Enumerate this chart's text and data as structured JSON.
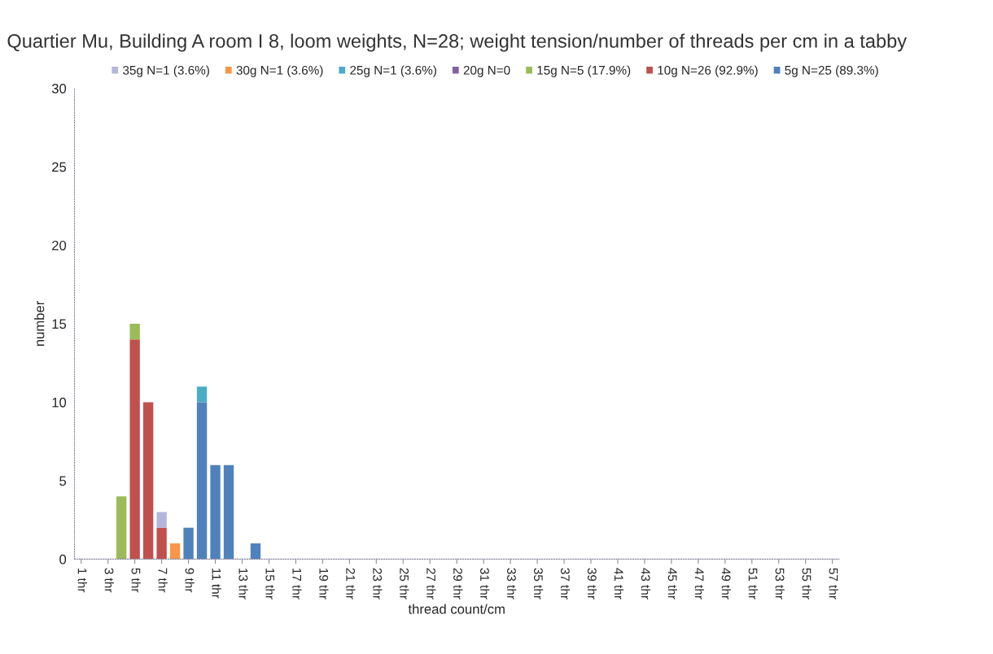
{
  "chart_data": {
    "type": "bar",
    "stacked": true,
    "title": "Quartier Mu, Building A room I 8, loom weights, N=28; weight tension/number of threads per cm in a tabby",
    "xlabel": "thread count/cm",
    "ylabel": "number",
    "categories": [
      "1 thr",
      null,
      "3 thr",
      null,
      "5 thr",
      null,
      "7 thr",
      null,
      "9 thr",
      null,
      "11 thr",
      null,
      "13 thr",
      null,
      "15 thr",
      null,
      "17 thr",
      null,
      "19 thr",
      null,
      "21 thr",
      null,
      "23 thr",
      null,
      "25 thr",
      null,
      "27 thr",
      null,
      "29 thr",
      null,
      "31 thr",
      null,
      "33 thr",
      null,
      "35 thr",
      null,
      "37 thr",
      null,
      "39 thr",
      null,
      "41 thr",
      null,
      "43 thr",
      null,
      "45 thr",
      null,
      "47 thr",
      null,
      "49 thr",
      null,
      "51 thr",
      null,
      "53 thr",
      null,
      "55 thr",
      null,
      "57 thr"
    ],
    "series": [
      {
        "name": "5g N=25 (89.3%)",
        "color": "#4f81bd",
        "values": [
          null,
          null,
          null,
          null,
          null,
          null,
          null,
          null,
          2,
          10,
          6,
          6,
          null,
          1,
          null,
          null,
          null,
          null,
          null,
          null,
          null,
          null,
          null,
          null,
          null,
          null,
          null,
          null,
          null,
          null,
          null,
          null,
          null,
          null,
          null,
          null,
          null,
          null,
          null,
          null,
          null,
          null,
          null,
          null,
          null,
          null,
          null,
          null,
          null,
          null,
          null,
          null,
          null,
          null,
          null,
          null,
          null
        ]
      },
      {
        "name": "10g N=26 (92.9%)",
        "color": "#c0504d",
        "values": [
          null,
          null,
          null,
          null,
          14,
          10,
          2,
          null,
          null,
          null,
          null,
          null,
          null,
          null,
          null,
          null,
          null,
          null,
          null,
          null,
          null,
          null,
          null,
          null,
          null,
          null,
          null,
          null,
          null,
          null,
          null,
          null,
          null,
          null,
          null,
          null,
          null,
          null,
          null,
          null,
          null,
          null,
          null,
          null,
          null,
          null,
          null,
          null,
          null,
          null,
          null,
          null,
          null,
          null,
          null,
          null,
          null
        ]
      },
      {
        "name": "15g N=5 (17.9%)",
        "color": "#9bbb59",
        "values": [
          null,
          null,
          null,
          4,
          1,
          null,
          null,
          null,
          null,
          null,
          null,
          null,
          null,
          null,
          null,
          null,
          null,
          null,
          null,
          null,
          null,
          null,
          null,
          null,
          null,
          null,
          null,
          null,
          null,
          null,
          null,
          null,
          null,
          null,
          null,
          null,
          null,
          null,
          null,
          null,
          null,
          null,
          null,
          null,
          null,
          null,
          null,
          null,
          null,
          null,
          null,
          null,
          null,
          null,
          null,
          null,
          null
        ]
      },
      {
        "name": "20g N=0",
        "color": "#8064a2",
        "values": [
          null,
          null,
          null,
          null,
          null,
          null,
          null,
          null,
          null,
          null,
          null,
          null,
          null,
          null,
          null,
          null,
          null,
          null,
          null,
          null,
          null,
          null,
          null,
          null,
          null,
          null,
          null,
          null,
          null,
          null,
          null,
          null,
          null,
          null,
          null,
          null,
          null,
          null,
          null,
          null,
          null,
          null,
          null,
          null,
          null,
          null,
          null,
          null,
          null,
          null,
          null,
          null,
          null,
          null,
          null,
          null,
          null
        ]
      },
      {
        "name": "25g N=1 (3.6%)",
        "color": "#4bacc6",
        "values": [
          null,
          null,
          null,
          null,
          null,
          null,
          null,
          null,
          null,
          1,
          null,
          null,
          null,
          null,
          null,
          null,
          null,
          null,
          null,
          null,
          null,
          null,
          null,
          null,
          null,
          null,
          null,
          null,
          null,
          null,
          null,
          null,
          null,
          null,
          null,
          null,
          null,
          null,
          null,
          null,
          null,
          null,
          null,
          null,
          null,
          null,
          null,
          null,
          null,
          null,
          null,
          null,
          null,
          null,
          null,
          null,
          null
        ]
      },
      {
        "name": "30g N=1 (3.6%)",
        "color": "#f79646",
        "values": [
          null,
          null,
          null,
          null,
          null,
          null,
          null,
          1,
          null,
          null,
          null,
          null,
          null,
          null,
          null,
          null,
          null,
          null,
          null,
          null,
          null,
          null,
          null,
          null,
          null,
          null,
          null,
          null,
          null,
          null,
          null,
          null,
          null,
          null,
          null,
          null,
          null,
          null,
          null,
          null,
          null,
          null,
          null,
          null,
          null,
          null,
          null,
          null,
          null,
          null,
          null,
          null,
          null,
          null,
          null,
          null,
          null
        ]
      },
      {
        "name": "35g N=1 (3.6%)",
        "color": "#b3b5dc",
        "values": [
          null,
          null,
          null,
          null,
          null,
          null,
          1,
          null,
          null,
          null,
          null,
          null,
          null,
          null,
          null,
          null,
          null,
          null,
          null,
          null,
          null,
          null,
          null,
          null,
          null,
          null,
          null,
          null,
          null,
          null,
          null,
          null,
          null,
          null,
          null,
          null,
          null,
          null,
          null,
          null,
          null,
          null,
          null,
          null,
          null,
          null,
          null,
          null,
          null,
          null,
          null,
          null,
          null,
          null,
          null,
          null,
          null
        ]
      }
    ],
    "ylim": [
      0,
      30
    ],
    "yticks": [
      0,
      5,
      10,
      15,
      20,
      25,
      30
    ],
    "legend": "top",
    "grid": false
  }
}
